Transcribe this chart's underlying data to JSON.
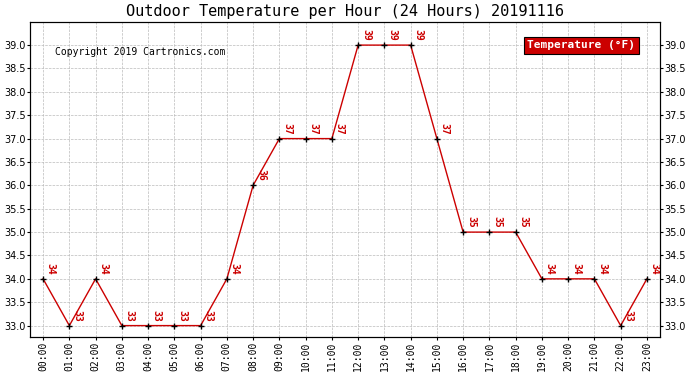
{
  "title": "Outdoor Temperature per Hour (24 Hours) 20191116",
  "copyright": "Copyright 2019 Cartronics.com",
  "legend_label": "Temperature (°F)",
  "hours": [
    "00:00",
    "01:00",
    "02:00",
    "03:00",
    "04:00",
    "05:00",
    "06:00",
    "07:00",
    "08:00",
    "09:00",
    "10:00",
    "11:00",
    "12:00",
    "13:00",
    "14:00",
    "15:00",
    "16:00",
    "17:00",
    "18:00",
    "19:00",
    "20:00",
    "21:00",
    "22:00",
    "23:00"
  ],
  "temps": [
    34,
    33,
    34,
    33,
    33,
    33,
    33,
    34,
    36,
    37,
    37,
    37,
    39,
    39,
    39,
    37,
    35,
    35,
    35,
    34,
    34,
    34,
    33,
    34
  ],
  "line_color": "#cc0000",
  "marker_color": "black",
  "label_color": "#cc0000",
  "bg_color": "#ffffff",
  "grid_color": "#bbbbbb",
  "title_color": "black",
  "copyright_color": "black",
  "legend_bg": "#cc0000",
  "legend_text_color": "#ffffff",
  "ylim": [
    32.75,
    39.5
  ],
  "yticks": [
    33.0,
    33.5,
    34.0,
    34.5,
    35.0,
    35.5,
    36.0,
    36.5,
    37.0,
    37.5,
    38.0,
    38.5,
    39.0
  ],
  "title_fontsize": 11,
  "copyright_fontsize": 7,
  "label_fontsize": 7,
  "tick_fontsize": 7,
  "legend_fontsize": 8
}
